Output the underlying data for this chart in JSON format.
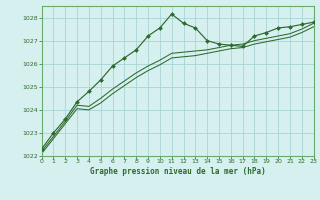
{
  "background_color": "#d6f0f0",
  "grid_color": "#aad4d4",
  "line_color": "#2d6a2d",
  "marker_color": "#2d6a2d",
  "border_color": "#6aaa6a",
  "title": "Graphe pression niveau de la mer (hPa)",
  "xlim": [
    0,
    23
  ],
  "ylim": [
    1022,
    1028.5
  ],
  "xticks": [
    0,
    1,
    2,
    3,
    4,
    5,
    6,
    7,
    8,
    9,
    10,
    11,
    12,
    13,
    14,
    15,
    16,
    17,
    18,
    19,
    20,
    21,
    22,
    23
  ],
  "yticks": [
    1022,
    1023,
    1024,
    1025,
    1026,
    1027,
    1028
  ],
  "series1_x": [
    0,
    1,
    2,
    3,
    4,
    5,
    6,
    7,
    8,
    9,
    10,
    11,
    12,
    13,
    14,
    15,
    16,
    17,
    18,
    19,
    20,
    21,
    22,
    23
  ],
  "series1_y": [
    1022.3,
    1023.0,
    1023.6,
    1024.35,
    1024.8,
    1025.3,
    1025.9,
    1026.25,
    1026.6,
    1027.2,
    1027.55,
    1028.15,
    1027.75,
    1027.55,
    1027.0,
    1026.85,
    1026.8,
    1026.75,
    1027.2,
    1027.35,
    1027.55,
    1027.6,
    1027.7,
    1027.8
  ],
  "series2_x": [
    0,
    1,
    2,
    3,
    4,
    5,
    6,
    7,
    8,
    9,
    10,
    11,
    12,
    13,
    14,
    15,
    16,
    17,
    18,
    19,
    20,
    21,
    22,
    23
  ],
  "series2_y": [
    1022.2,
    1022.85,
    1023.5,
    1024.2,
    1024.15,
    1024.5,
    1024.9,
    1025.25,
    1025.6,
    1025.9,
    1026.15,
    1026.45,
    1026.5,
    1026.55,
    1026.6,
    1026.7,
    1026.8,
    1026.85,
    1027.0,
    1027.1,
    1027.2,
    1027.3,
    1027.5,
    1027.75
  ],
  "series3_x": [
    0,
    1,
    2,
    3,
    4,
    5,
    6,
    7,
    8,
    9,
    10,
    11,
    12,
    13,
    14,
    15,
    16,
    17,
    18,
    19,
    20,
    21,
    22,
    23
  ],
  "series3_y": [
    1022.1,
    1022.75,
    1023.4,
    1024.05,
    1024.0,
    1024.3,
    1024.7,
    1025.05,
    1025.4,
    1025.7,
    1025.95,
    1026.25,
    1026.3,
    1026.35,
    1026.45,
    1026.55,
    1026.65,
    1026.7,
    1026.85,
    1026.95,
    1027.05,
    1027.15,
    1027.35,
    1027.6
  ]
}
